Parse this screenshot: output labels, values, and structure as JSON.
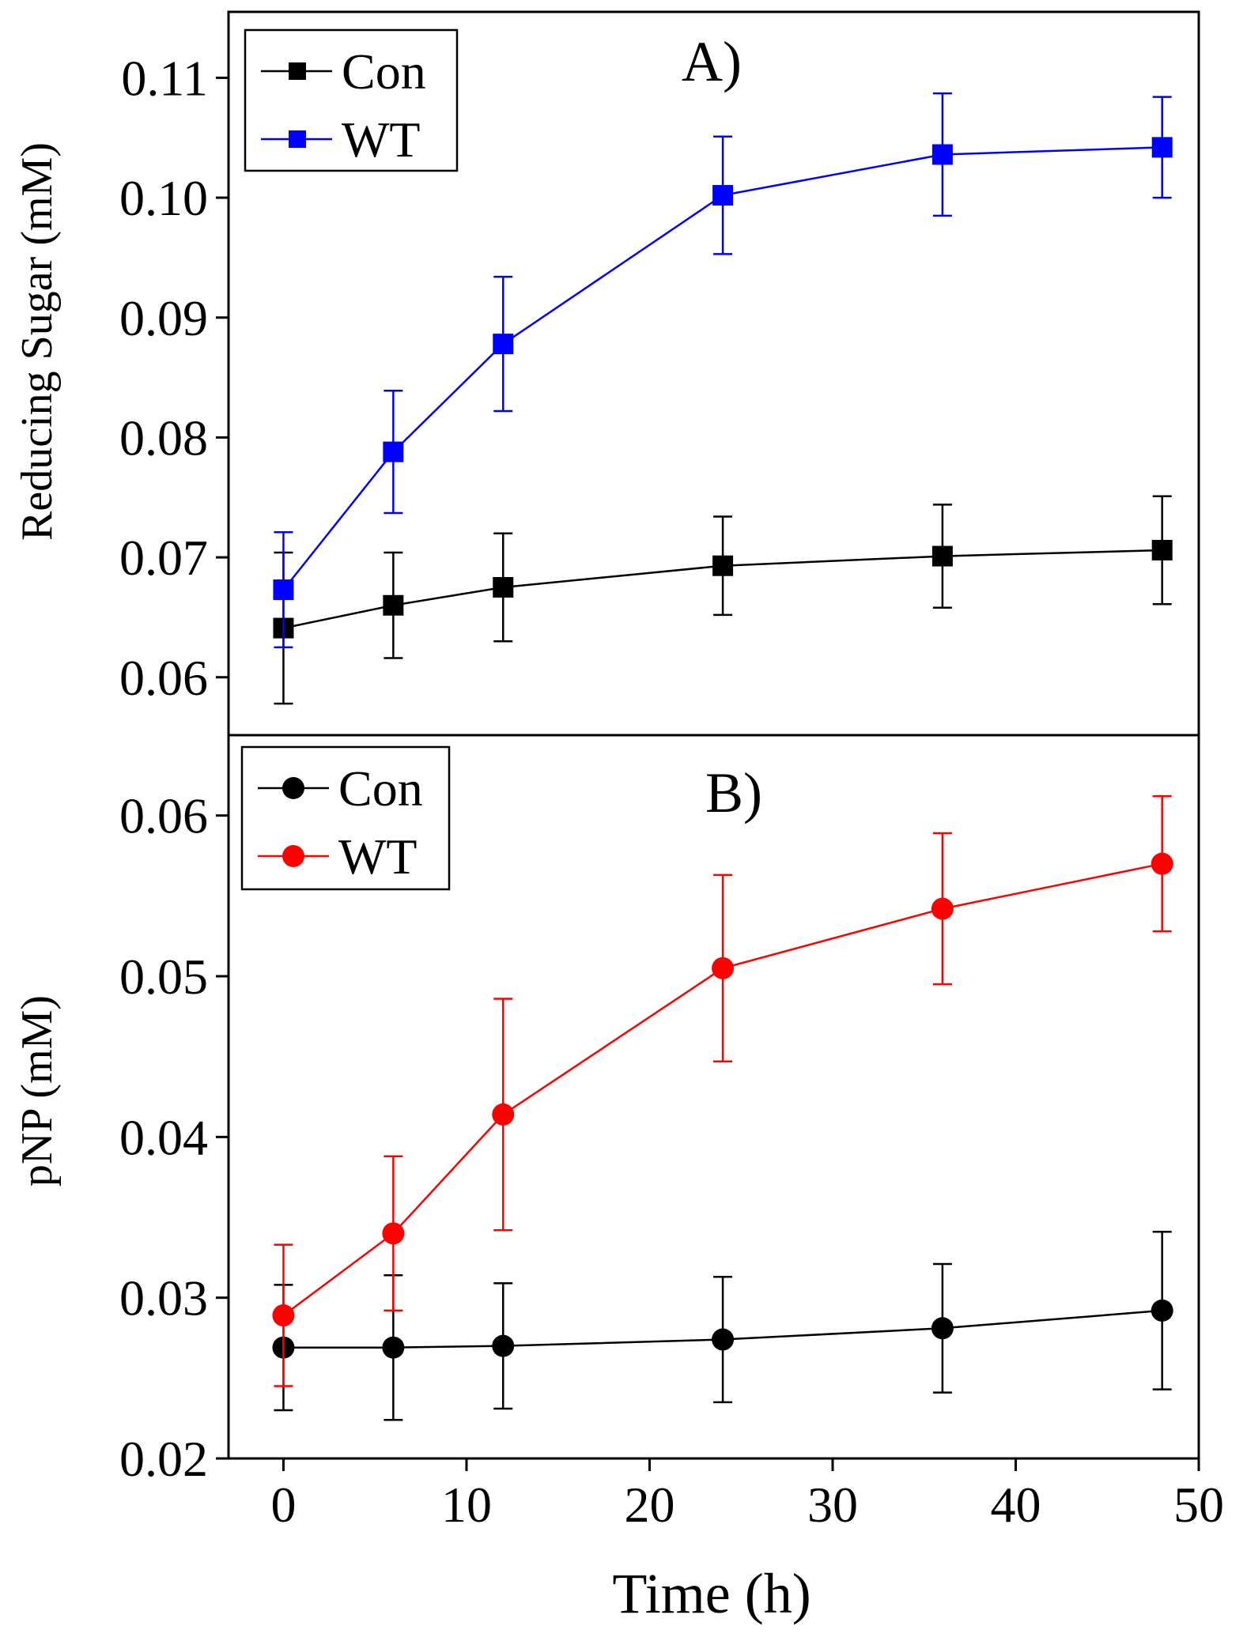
{
  "chart_data": [
    {
      "type": "line",
      "panel_label": "A)",
      "title": "",
      "xlabel": "",
      "ylabel": "Reducing Sugar (mM)",
      "xlim": [
        -3,
        50
      ],
      "ylim": [
        0.0555,
        0.1155
      ],
      "x_ticks": [
        0,
        10,
        20,
        30,
        40,
        50
      ],
      "y_ticks": [
        0.06,
        0.07,
        0.08,
        0.09,
        0.1,
        0.11
      ],
      "y_tick_labels": [
        "0.06",
        "0.07",
        "0.08",
        "0.09",
        "0.10",
        "0.11"
      ],
      "marker": "square",
      "legend_position": "top-left",
      "x": [
        0,
        6,
        12,
        24,
        36,
        48
      ],
      "series": [
        {
          "name": "Con",
          "color": "#000000",
          "values": [
            0.0641,
            0.066,
            0.0675,
            0.0693,
            0.0701,
            0.0706
          ],
          "errors": [
            0.0063,
            0.0044,
            0.0045,
            0.0041,
            0.0043,
            0.0045
          ]
        },
        {
          "name": "WT",
          "color": "#0000ff",
          "values": [
            0.0673,
            0.0788,
            0.0878,
            0.1002,
            0.1036,
            0.1042
          ],
          "errors": [
            0.0048,
            0.0051,
            0.0056,
            0.0049,
            0.0051,
            0.0042
          ]
        }
      ]
    },
    {
      "type": "line",
      "panel_label": "B)",
      "title": "",
      "xlabel": "Time (h)",
      "ylabel": "pNP (mM)",
      "xlim": [
        -3,
        50
      ],
      "ylim": [
        0.02,
        0.065
      ],
      "x_ticks": [
        0,
        10,
        20,
        30,
        40,
        50
      ],
      "x_tick_labels": [
        "0",
        "10",
        "20",
        "30",
        "40",
        "50"
      ],
      "y_ticks": [
        0.02,
        0.03,
        0.04,
        0.05,
        0.06
      ],
      "y_tick_labels": [
        "0.02",
        "0.03",
        "0.04",
        "0.05",
        "0.06"
      ],
      "marker": "circle",
      "legend_position": "top-left",
      "x": [
        0,
        6,
        12,
        24,
        36,
        48
      ],
      "series": [
        {
          "name": "Con",
          "color": "#000000",
          "values": [
            0.0269,
            0.0269,
            0.027,
            0.0274,
            0.0281,
            0.0292
          ],
          "errors": [
            0.0039,
            0.0045,
            0.0039,
            0.0039,
            0.004,
            0.0049
          ]
        },
        {
          "name": "WT",
          "color": "#ff0000",
          "values": [
            0.0289,
            0.034,
            0.0414,
            0.0505,
            0.0542,
            0.057
          ],
          "errors": [
            0.0044,
            0.0048,
            0.0072,
            0.0058,
            0.0047,
            0.0042
          ]
        }
      ]
    }
  ]
}
